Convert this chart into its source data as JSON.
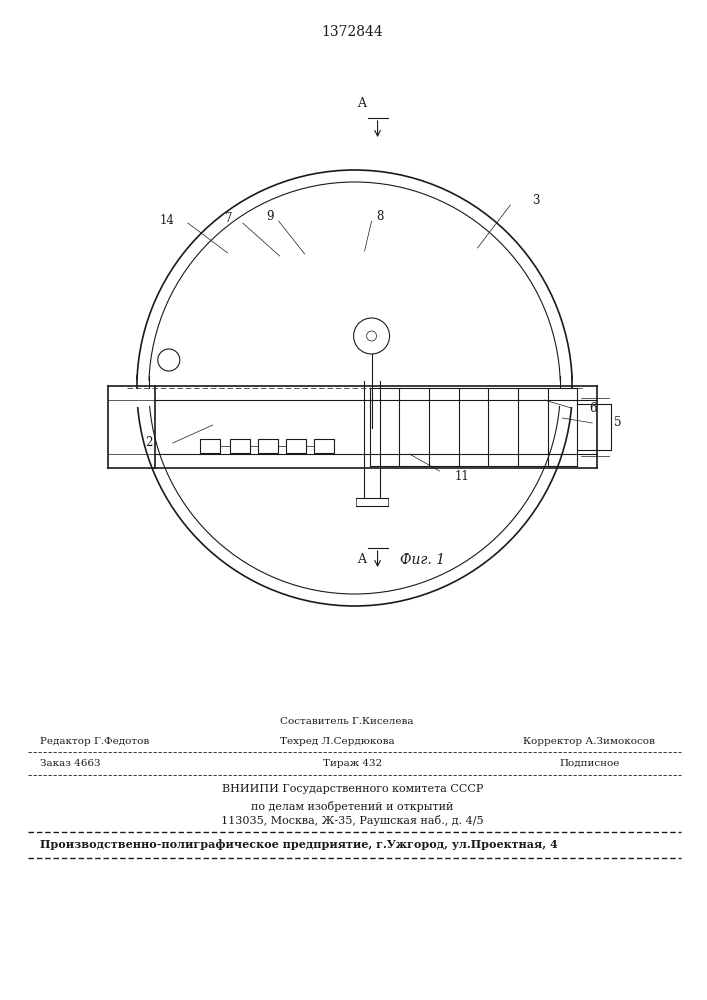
{
  "patent_number": "1372844",
  "fig_label": "Фиг. 1",
  "bg_color": "#ffffff",
  "line_color": "#1a1a1a",
  "footer": {
    "line1_center_top": "Составитель Г.Киселева",
    "line1_left": "Редактор Г.Федотов",
    "line1_center_bot": "Техред Л.Сердюкова",
    "line1_right": "Корректор А.Зимокосов",
    "line2_left": "Заказ 4663",
    "line2_center": "Тираж 432",
    "line2_right": "Подписное",
    "line3": "ВНИИПИ Государственного комитета СССР",
    "line4": "по делам изобретений и открытий",
    "line5": "113035, Москва, Ж-35, Раушская наб., д. 4/5",
    "line6": "Производственно-полиграфическое предприятие, г.Ужгород, ул.Проектная, 4"
  }
}
